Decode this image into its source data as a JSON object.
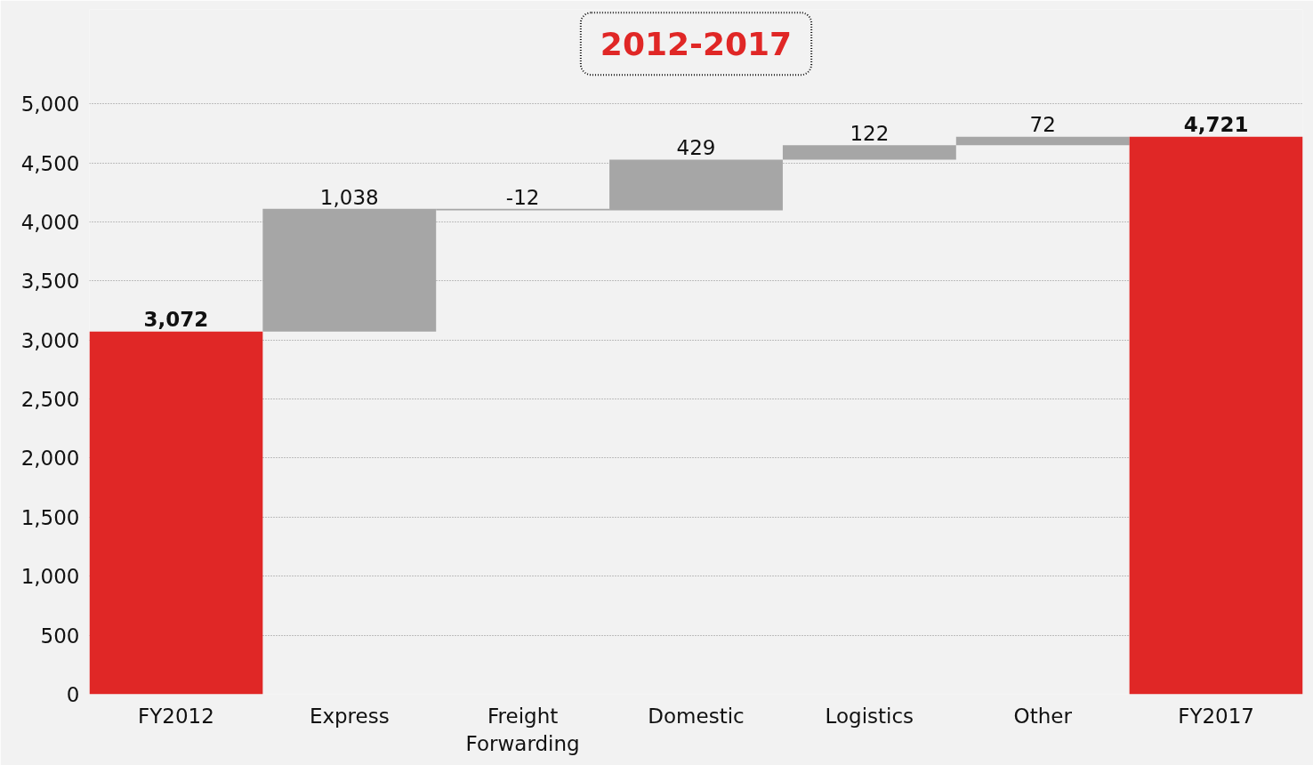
{
  "chart_data": {
    "type": "bar",
    "title": "2012-2017",
    "categories": [
      "FY2012",
      "Express",
      "Freight Forwarding",
      "Domestic",
      "Logistics",
      "Other",
      "FY2017"
    ],
    "values": [
      3072,
      1038,
      -12,
      429,
      122,
      72,
      4721
    ],
    "base": [
      0,
      3072,
      4110,
      4098,
      4527,
      4649,
      0
    ],
    "colors": [
      "#e02726",
      "#a6a6a6",
      "#a6a6a6",
      "#a6a6a6",
      "#a6a6a6",
      "#a6a6a6",
      "#e02726"
    ],
    "value_labels": [
      "3,072",
      "1,038",
      "-12",
      "429",
      "122",
      "72",
      "4,721"
    ],
    "ylim": [
      0,
      5800
    ],
    "yticks": [
      0,
      {
        "value": 500,
        "label": "500"
      },
      {
        "value": 1000,
        "label": "1,000"
      },
      {
        "value": 1500,
        "label": "1,500"
      },
      {
        "value": 2000,
        "label": "2,000"
      },
      {
        "value": 2500,
        "label": "2,500"
      },
      {
        "value": 3000,
        "label": "3,000"
      },
      {
        "value": 3500,
        "label": "3,500"
      },
      {
        "value": 4000,
        "label": "4,000"
      },
      {
        "value": 4500,
        "label": "4,500"
      },
      {
        "value": 5000,
        "label": "5,000"
      }
    ],
    "grid": "y"
  }
}
